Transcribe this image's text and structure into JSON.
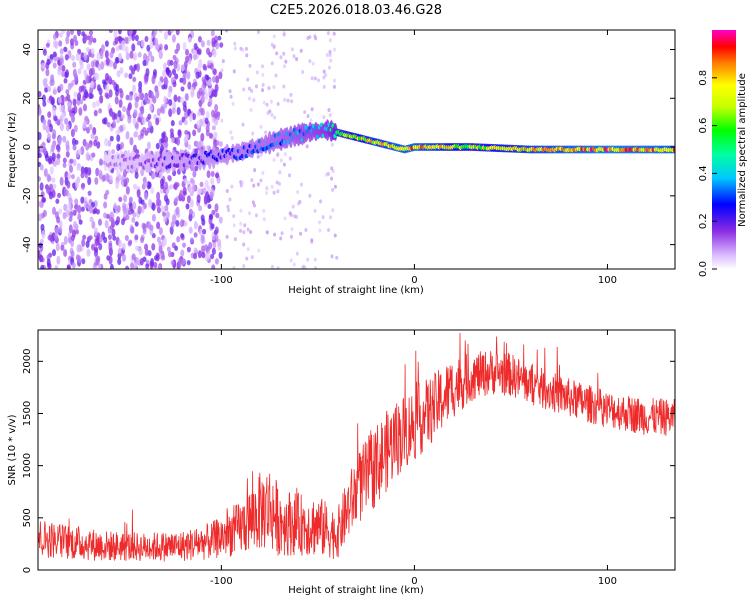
{
  "figure_title": "C2E5.2026.018.03.46.G28",
  "chart_data": [
    {
      "type": "heatmap",
      "title": "C2E5.2026.018.03.46.G28",
      "xlabel": "Height of straight line (km)",
      "ylabel": "Frequency (Hz)",
      "xlim": [
        -195,
        135
      ],
      "ylim": [
        -50,
        48
      ],
      "xticks": [
        -100,
        0,
        100
      ],
      "yticks": [
        -40,
        -20,
        0,
        20,
        40
      ],
      "xtick_labels": [
        "-100",
        "0",
        "100"
      ],
      "ytick_labels": [
        "-40",
        "-20",
        "0",
        "20",
        "40"
      ],
      "colorbar": {
        "label": "Normalized spectral amplitude",
        "range": [
          0,
          1
        ],
        "ticks": [
          0.0,
          0.2,
          0.4,
          0.6,
          0.8
        ],
        "tick_labels": [
          "0.0",
          "0.2",
          "0.4",
          "0.6",
          "0.8"
        ]
      },
      "ridge": {
        "x": [
          -160,
          -130,
          -110,
          -90,
          -70,
          -55,
          -45,
          -35,
          -25,
          -15,
          -5,
          0,
          10,
          30,
          60,
          100,
          135
        ],
        "freq": [
          -6,
          -6,
          -5,
          -2,
          3,
          6,
          7,
          5,
          3,
          1,
          -1,
          0,
          0,
          0,
          -1,
          -1,
          -1
        ],
        "amplitude": [
          0.1,
          0.2,
          0.25,
          0.3,
          0.35,
          0.4,
          0.45,
          0.7,
          0.8,
          0.85,
          0.9,
          0.9,
          0.85,
          0.7,
          0.85,
          0.95,
          0.9
        ]
      },
      "noise_extent_x": [
        -195,
        -100
      ]
    },
    {
      "type": "line",
      "title": "",
      "xlabel": "Height of straight line (km)",
      "ylabel": "SNR (10 * v/v)",
      "xlim": [
        -195,
        135
      ],
      "ylim": [
        0,
        2300
      ],
      "xticks": [
        -100,
        0,
        100
      ],
      "yticks": [
        0,
        500,
        1000,
        1500,
        2000
      ],
      "xtick_labels": [
        "-100",
        "0",
        "100"
      ],
      "ytick_labels": [
        "0",
        "500",
        "1000",
        "1500",
        "2000"
      ],
      "series": [
        {
          "name": "SNR",
          "color": "#ee2a2a",
          "x": [
            -195,
            -180,
            -160,
            -140,
            -120,
            -105,
            -90,
            -80,
            -75,
            -70,
            -60,
            -50,
            -40,
            -35,
            -30,
            -20,
            -10,
            0,
            10,
            20,
            30,
            40,
            50,
            60,
            80,
            100,
            120,
            135
          ],
          "mean": [
            310,
            270,
            230,
            220,
            230,
            280,
            400,
            560,
            600,
            470,
            440,
            420,
            340,
            560,
            760,
            1000,
            1250,
            1400,
            1550,
            1750,
            1850,
            1900,
            1870,
            1780,
            1650,
            1540,
            1470,
            1460
          ],
          "spread": [
            190,
            170,
            150,
            140,
            150,
            180,
            260,
            380,
            420,
            340,
            300,
            300,
            240,
            300,
            350,
            400,
            380,
            360,
            330,
            300,
            230,
            220,
            210,
            200,
            190,
            180,
            180,
            180
          ]
        }
      ]
    }
  ]
}
